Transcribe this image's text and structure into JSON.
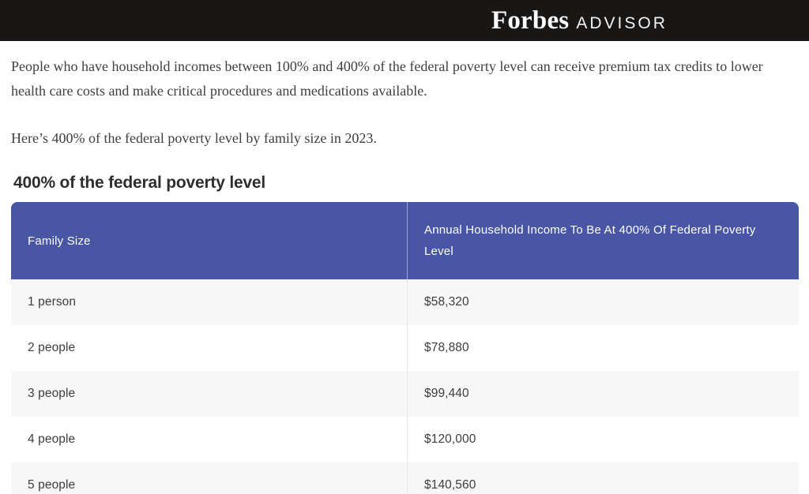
{
  "header": {
    "brand": "Forbes",
    "brand_suffix": "ADVISOR"
  },
  "article": {
    "paragraph1": "People who have household incomes between 100% and 400% of the federal poverty level can receive premium tax credits to lower health care costs and make critical procedures and medications available.",
    "paragraph2": "Here’s 400% of the federal poverty level by family size in 2023.",
    "section_heading": "400% of the federal poverty level"
  },
  "table": {
    "columns": [
      "Family Size",
      "Annual Household Income To Be At 400% Of Federal Poverty Level"
    ],
    "rows": [
      {
        "family_size": "1 person",
        "income": "$58,320"
      },
      {
        "family_size": "2 people",
        "income": "$78,880"
      },
      {
        "family_size": "3 people",
        "income": "$99,440"
      },
      {
        "family_size": "4 people",
        "income": "$120,000"
      },
      {
        "family_size": "5 people",
        "income": "$140,560"
      }
    ]
  },
  "colors": {
    "top_bar_bg": "#191716",
    "table_header_bg": "#4856a5",
    "row_alt_bg": "#f7f7f7"
  }
}
